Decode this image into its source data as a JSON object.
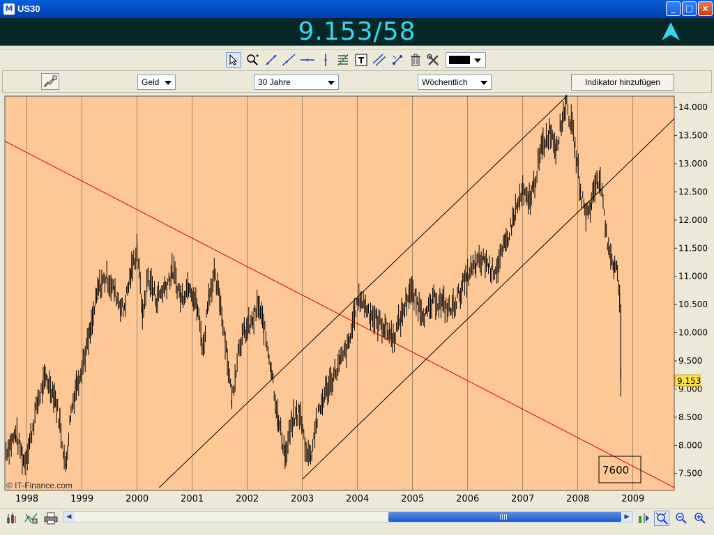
{
  "window": {
    "title": "US30",
    "app_icon_glyph": "M"
  },
  "quote": {
    "price": "9.153/58",
    "direction": "up",
    "price_color": "#37d7e8"
  },
  "toolbar": {
    "tools": [
      "pointer-icon",
      "zoom-icon",
      "trendline-icon",
      "line-icon",
      "horizontal-line-icon",
      "vertical-line-icon",
      "fibonacci-icon",
      "text-icon",
      "parallel-channel-icon",
      "crosshair-icon",
      "trash-icon",
      "tools-icon"
    ],
    "color_value": "#000000"
  },
  "controls": {
    "price_type": "Geld",
    "range": "30 Jahre",
    "interval": "Wöchentlich",
    "add_indicator_label": "Indikator hinzufügen"
  },
  "chart_data": {
    "type": "bar",
    "symbol": "US30",
    "x_ticks": [
      "1998",
      "1999",
      "2000",
      "2001",
      "2002",
      "2003",
      "2004",
      "2005",
      "2006",
      "2007",
      "2008",
      "2009"
    ],
    "y_ticks": [
      "7.500",
      "8.000",
      "8.500",
      "9.000",
      "9.500",
      "10.000",
      "10.500",
      "11.000",
      "11.500",
      "12.000",
      "12.500",
      "13.000",
      "13.500",
      "14.000"
    ],
    "ylim": [
      7200,
      14200
    ],
    "xlim": [
      1997.6,
      2009.75
    ],
    "last_value_label": "9.153",
    "background_color": "#fdc896",
    "grid": true,
    "watermark": "© IT-Finance.com",
    "annotation": "7600",
    "series_points": [
      [
        1997.62,
        7900
      ],
      [
        1997.8,
        8200
      ],
      [
        1997.95,
        7700
      ],
      [
        1998.05,
        8050
      ],
      [
        1998.2,
        8800
      ],
      [
        1998.35,
        9200
      ],
      [
        1998.5,
        8900
      ],
      [
        1998.6,
        8400
      ],
      [
        1998.7,
        7600
      ],
      [
        1998.8,
        8600
      ],
      [
        1998.9,
        9100
      ],
      [
        1999.0,
        9400
      ],
      [
        1999.15,
        10000
      ],
      [
        1999.3,
        10800
      ],
      [
        1999.45,
        11000
      ],
      [
        1999.6,
        10700
      ],
      [
        1999.75,
        10400
      ],
      [
        1999.9,
        11100
      ],
      [
        2000.0,
        11500
      ],
      [
        2000.1,
        10300
      ],
      [
        2000.2,
        11000
      ],
      [
        2000.35,
        10600
      ],
      [
        2000.5,
        10800
      ],
      [
        2000.65,
        11100
      ],
      [
        2000.8,
        10600
      ],
      [
        2000.95,
        10900
      ],
      [
        2001.1,
        10400
      ],
      [
        2001.2,
        9700
      ],
      [
        2001.3,
        10700
      ],
      [
        2001.4,
        11000
      ],
      [
        2001.5,
        10600
      ],
      [
        2001.6,
        9900
      ],
      [
        2001.72,
        8800
      ],
      [
        2001.85,
        9800
      ],
      [
        2001.95,
        10000
      ],
      [
        2002.1,
        10200
      ],
      [
        2002.2,
        10500
      ],
      [
        2002.3,
        10100
      ],
      [
        2002.45,
        9300
      ],
      [
        2002.55,
        8500
      ],
      [
        2002.7,
        7800
      ],
      [
        2002.8,
        8400
      ],
      [
        2002.95,
        8600
      ],
      [
        2003.05,
        8000
      ],
      [
        2003.15,
        7800
      ],
      [
        2003.25,
        8400
      ],
      [
        2003.4,
        8900
      ],
      [
        2003.55,
        9200
      ],
      [
        2003.7,
        9500
      ],
      [
        2003.85,
        9800
      ],
      [
        2003.95,
        10400
      ],
      [
        2004.05,
        10600
      ],
      [
        2004.2,
        10400
      ],
      [
        2004.35,
        10200
      ],
      [
        2004.5,
        10100
      ],
      [
        2004.65,
        9900
      ],
      [
        2004.8,
        10300
      ],
      [
        2004.95,
        10750
      ],
      [
        2005.1,
        10500
      ],
      [
        2005.25,
        10300
      ],
      [
        2005.4,
        10600
      ],
      [
        2005.55,
        10500
      ],
      [
        2005.7,
        10400
      ],
      [
        2005.85,
        10700
      ],
      [
        2006.0,
        11000
      ],
      [
        2006.15,
        11200
      ],
      [
        2006.3,
        11300
      ],
      [
        2006.45,
        11100
      ],
      [
        2006.55,
        11200
      ],
      [
        2006.7,
        11600
      ],
      [
        2006.85,
        12100
      ],
      [
        2007.0,
        12500
      ],
      [
        2007.1,
        12300
      ],
      [
        2007.2,
        12600
      ],
      [
        2007.35,
        13300
      ],
      [
        2007.5,
        13600
      ],
      [
        2007.6,
        13300
      ],
      [
        2007.7,
        13700
      ],
      [
        2007.78,
        14100
      ],
      [
        2007.88,
        13700
      ],
      [
        2007.95,
        13300
      ],
      [
        2008.05,
        12500
      ],
      [
        2008.15,
        12100
      ],
      [
        2008.25,
        12300
      ],
      [
        2008.35,
        12800
      ],
      [
        2008.42,
        12600
      ],
      [
        2008.5,
        11800
      ],
      [
        2008.6,
        11400
      ],
      [
        2008.65,
        11200
      ],
      [
        2008.72,
        11100
      ],
      [
        2008.76,
        10500
      ],
      [
        2008.78,
        9150
      ]
    ],
    "lines": [
      {
        "name": "",
        "color": "#cc0000",
        "from": [
          1997.6,
          13400
        ],
        "to": [
          2009.75,
          7250
        ]
      },
      {
        "name": "",
        "color": "#000000",
        "from": [
          2000.4,
          7250
        ],
        "to": [
          2007.8,
          14200
        ]
      },
      {
        "name": "",
        "color": "#000000",
        "from": [
          2003.0,
          7400
        ],
        "to": [
          2009.75,
          13800
        ]
      }
    ]
  },
  "status": {
    "icons": [
      "chart-type-icon",
      "compare-icon",
      "print-icon",
      "auto-scroll-icon",
      "zoom-fit-icon",
      "zoom-out-icon",
      "zoom-in-icon"
    ]
  }
}
